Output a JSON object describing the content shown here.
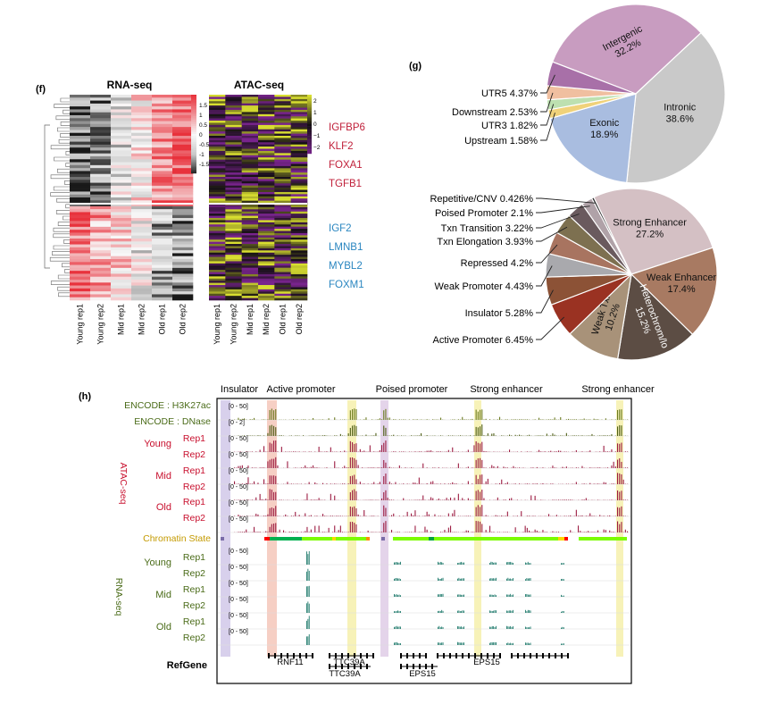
{
  "panels": {
    "f": "(f)",
    "g": "(g)",
    "h": "(h)"
  },
  "heatmap": {
    "rna_title": "RNA-seq",
    "atac_title": "ATAC-seq",
    "columns": [
      "Young rep1",
      "Young rep2",
      "Mid rep1",
      "Mid rep2",
      "Old rep1",
      "Old rep2"
    ],
    "rna_scale_ticks": [
      "1.5",
      "1",
      "0.5",
      "0",
      "-0.5",
      "-1",
      "-1.5"
    ],
    "atac_scale_ticks": [
      "2",
      "1",
      "0",
      "−1",
      "−2"
    ],
    "up_genes": [
      "IGFBP6",
      "KLF2",
      "FOXA1",
      "TGFB1"
    ],
    "down_genes": [
      "IGF2",
      "LMNB1",
      "MYBL2",
      "FOXM1"
    ],
    "colors": {
      "up_gene": "#c0203a",
      "down_gene": "#2a86c0",
      "rna_high": "#e8323c",
      "atac_high": "#d8de30",
      "atac_low": "#8a2a9a"
    }
  },
  "chart_data": [
    {
      "type": "pie",
      "title": "",
      "labels": [
        "Intergenic",
        "Intronic",
        "Exonic",
        "Upstream",
        "UTR3",
        "Downstream",
        "UTR5"
      ],
      "values": [
        32.2,
        38.6,
        18.9,
        1.58,
        1.82,
        2.53,
        4.37
      ],
      "display": [
        "Intergenic\n32.2%",
        "Intronic\n38.6%",
        "Exonic\n18.9%",
        "Upstream 1.58%",
        "UTR3 1.82%",
        "Downstream 2.53%",
        "UTR5 4.37%"
      ],
      "colors": [
        "#c89cc0",
        "#c9c9c9",
        "#a9bde0",
        "#f0d27a",
        "#bde0b0",
        "#f0bfa0",
        "#a870a8"
      ]
    },
    {
      "type": "pie",
      "title": "",
      "labels": [
        "Strong Enhancer",
        "Weak Enhancer",
        "Heterochrom/lo",
        "Weak Txn",
        "Active Promoter",
        "Insulator",
        "Weak Promoter",
        "Repressed",
        "Txn Elongation",
        "Txn Transition",
        "Poised Promoter",
        "Repetitive/CNV"
      ],
      "values": [
        27.2,
        17.4,
        15.2,
        10.2,
        6.45,
        5.28,
        4.43,
        4.2,
        3.93,
        3.22,
        2.1,
        0.426
      ],
      "display": [
        "Strong Enhancer\n27.2%",
        "Weak Enhancer\n17.4%",
        "Heterochrom/lo\n15.2%",
        "Weak Txn\n10.2%",
        "Active Promoter 6.45%",
        "Insulator 5.28%",
        "Weak Promoter 4.43%",
        "Repressed 4.2%",
        "Txn Elongation 3.93%",
        "Txn Transition 3.22%",
        "Poised Promoter 2.1%",
        "Repetitive/CNV 0.426%"
      ],
      "colors": [
        "#d4c0c4",
        "#a87a62",
        "#5c4d44",
        "#a89279",
        "#9a3222",
        "#8c5236",
        "#a9a9ad",
        "#a87460",
        "#7d7050",
        "#6a5a5e",
        "#b0a2a8",
        "#2a2a2a"
      ]
    }
  ],
  "browser": {
    "annotations": [
      "Insulator",
      "Active promoter",
      "Poised promoter",
      "Strong enhancer",
      "Strong enhancer"
    ],
    "encode_h3k27ac": "ENCODE : H3K27ac",
    "encode_dnase": "ENCODE : DNase",
    "atac_axis": "ATAC-seq",
    "rna_axis": "RNA-seq",
    "groups": [
      "Young",
      "Mid",
      "Old"
    ],
    "reps": [
      "Rep1",
      "Rep2"
    ],
    "chromatin_state": "Chromatin State",
    "refgene": "RefGene",
    "ranges": [
      "[0 - 50]",
      "[0 - 2]",
      "[0 - 50]"
    ],
    "genes": [
      "RNF11",
      "TTC39A",
      "TTC39A",
      "EPS15",
      "EPS15"
    ],
    "colors": {
      "h3k27ac": "#6b7a20",
      "dnase": "#4e5e16",
      "atac": "#9c1c42",
      "rna": "#1e7a6c",
      "atac_label": "#c8102e",
      "rna_label": "#4a6b18",
      "chrom_label": "#c49a00"
    }
  }
}
